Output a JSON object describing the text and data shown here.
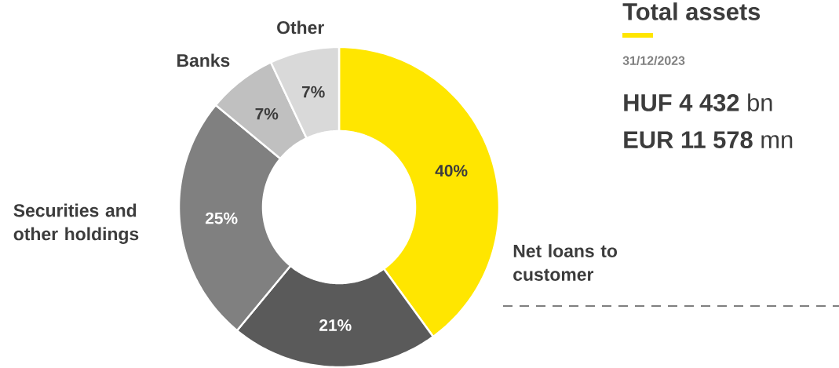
{
  "chart_data": {
    "type": "donut",
    "title": "Total assets",
    "categories": [
      "Net loans to customer",
      null,
      "Securities and other holdings",
      "Banks",
      "Other"
    ],
    "values": [
      40,
      21,
      25,
      7,
      7
    ],
    "value_labels": [
      "40%",
      "21%",
      "25%",
      "7%",
      "7%"
    ],
    "colors": [
      "#ffe600",
      "#5a5a5a",
      "#808080",
      "#c0c0c0",
      "#d9d9d9"
    ],
    "annotations": [
      "31/12/2023",
      "**HUF 4 432** bn",
      "**EUR 11 578** mn"
    ]
  }
}
